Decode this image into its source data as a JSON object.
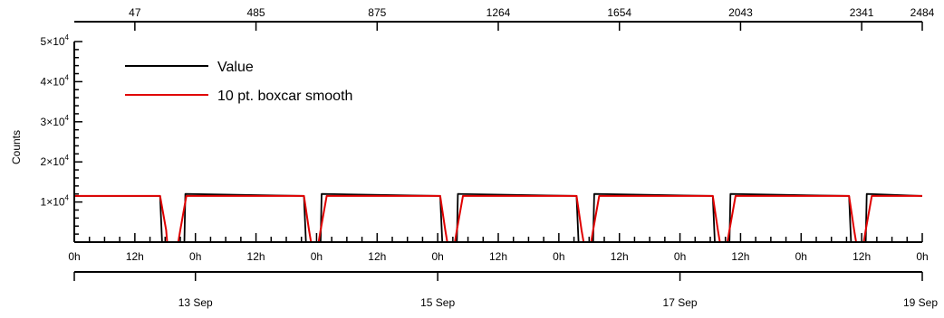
{
  "chart_data": {
    "type": "line",
    "title": "",
    "ylabel": "Counts",
    "ylim": [
      0,
      50000
    ],
    "y_ticks": [
      {
        "value": 10000,
        "mantissa": "1×10",
        "exp": "4"
      },
      {
        "value": 20000,
        "mantissa": "2×10",
        "exp": "4"
      },
      {
        "value": 30000,
        "mantissa": "3×10",
        "exp": "4"
      },
      {
        "value": 40000,
        "mantissa": "4×10",
        "exp": "4"
      },
      {
        "value": 50000,
        "mantissa": "5×10",
        "exp": "4"
      }
    ],
    "xlim_hours": [
      0,
      168
    ],
    "hour_ticks": [
      {
        "hour": 0,
        "label": "0h"
      },
      {
        "hour": 12,
        "label": "12h"
      },
      {
        "hour": 24,
        "label": "0h"
      },
      {
        "hour": 36,
        "label": "12h"
      },
      {
        "hour": 48,
        "label": "0h"
      },
      {
        "hour": 60,
        "label": "12h"
      },
      {
        "hour": 72,
        "label": "0h"
      },
      {
        "hour": 84,
        "label": "12h"
      },
      {
        "hour": 96,
        "label": "0h"
      },
      {
        "hour": 108,
        "label": "12h"
      },
      {
        "hour": 120,
        "label": "0h"
      },
      {
        "hour": 132,
        "label": "12h"
      },
      {
        "hour": 144,
        "label": "0h"
      },
      {
        "hour": 156,
        "label": "12h"
      },
      {
        "hour": 168,
        "label": "0h"
      }
    ],
    "date_ticks": [
      {
        "hour": 0,
        "label": ""
      },
      {
        "hour": 24,
        "label": "13 Sep"
      },
      {
        "hour": 72,
        "label": "15 Sep"
      },
      {
        "hour": 120,
        "label": "17 Sep"
      },
      {
        "hour": 168,
        "label": "19 Sep"
      }
    ],
    "top_ticks": [
      {
        "hour": 12,
        "label": "47"
      },
      {
        "hour": 36,
        "label": "485"
      },
      {
        "hour": 60,
        "label": "875"
      },
      {
        "hour": 84,
        "label": "1264"
      },
      {
        "hour": 108,
        "label": "1654"
      },
      {
        "hour": 132,
        "label": "2043"
      },
      {
        "hour": 156,
        "label": "2341"
      },
      {
        "hour": 168,
        "label": "2484"
      }
    ],
    "legend": {
      "placement": "top-left",
      "entries": [
        {
          "label": "Value",
          "color": "#000000"
        },
        {
          "label": "10 pt. boxcar smooth",
          "color": "#e00000"
        }
      ]
    },
    "series": [
      {
        "name": "Value",
        "color": "#000000",
        "x": [
          0,
          17.0,
          17.4,
          20.0,
          21.8,
          22.0,
          45.5,
          45.9,
          48.0,
          48.8,
          49.0,
          72.5,
          72.9,
          75.0,
          75.8,
          76.0,
          99.5,
          99.9,
          102.0,
          102.8,
          103.0,
          126.5,
          126.9,
          129.0,
          129.8,
          130.0,
          153.5,
          153.9,
          156.0,
          156.8,
          157.0,
          168
        ],
        "y": [
          11500,
          11500,
          0,
          0,
          0,
          12000,
          11500,
          0,
          0,
          0,
          12000,
          11500,
          0,
          0,
          0,
          12000,
          11500,
          0,
          0,
          0,
          12000,
          11500,
          0,
          0,
          0,
          12000,
          11500,
          0,
          0,
          0,
          12000,
          11500
        ]
      },
      {
        "name": "10 pt. boxcar smooth",
        "color": "#e00000",
        "x": [
          0,
          17.0,
          18.2,
          18.4,
          20.6,
          21.0,
          22.2,
          45.5,
          46.5,
          46.9,
          48.4,
          48.8,
          50.0,
          72.5,
          73.5,
          73.9,
          75.4,
          75.8,
          77.0,
          99.5,
          100.5,
          100.9,
          102.4,
          102.8,
          104.0,
          126.5,
          127.5,
          127.9,
          129.4,
          129.8,
          131.0,
          153.5,
          154.5,
          154.9,
          156.4,
          156.8,
          158.0,
          168
        ],
        "y": [
          11500,
          11500,
          3000,
          0,
          0,
          3000,
          11500,
          11500,
          3000,
          0,
          0,
          3000,
          11500,
          11500,
          3000,
          0,
          0,
          3000,
          11500,
          11500,
          3000,
          0,
          0,
          3000,
          11500,
          11500,
          3000,
          0,
          0,
          3000,
          11500,
          11500,
          3000,
          0,
          0,
          3000,
          11500,
          11500
        ]
      }
    ]
  }
}
